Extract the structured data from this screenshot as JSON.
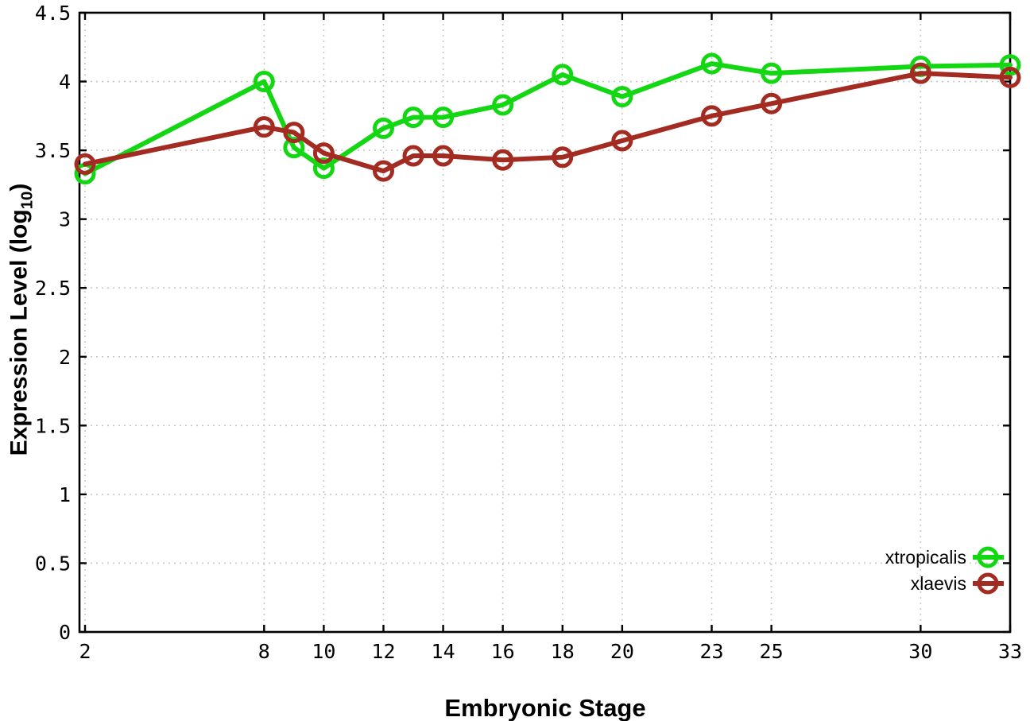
{
  "figure": {
    "xlabel": "Embryonic Stage",
    "ylabel_main": "Expression Level (log",
    "ylabel_sub": "10",
    "ylabel_close": ")"
  },
  "chart_data": {
    "type": "line",
    "title": "",
    "xlabel": "Embryonic Stage",
    "ylabel": "Expression Level (log10)",
    "xlim": [
      2,
      33
    ],
    "ylim": [
      0,
      4.5
    ],
    "grid": true,
    "legend_position": "inside-bottom-right",
    "marker": "open-circle",
    "x_ticks": [
      2,
      8,
      10,
      12,
      14,
      16,
      18,
      20,
      23,
      25,
      30,
      33
    ],
    "y_ticks": [
      0,
      0.5,
      1,
      1.5,
      2,
      2.5,
      3,
      3.5,
      4,
      4.5
    ],
    "x": [
      2,
      8,
      9,
      10,
      12,
      13,
      14,
      16,
      18,
      20,
      23,
      25,
      30,
      33
    ],
    "series": [
      {
        "name": "xtropicalis",
        "color": "#12d712",
        "values": [
          3.33,
          4.0,
          3.52,
          3.37,
          3.66,
          3.74,
          3.74,
          3.83,
          4.05,
          3.89,
          4.13,
          4.06,
          4.11,
          4.12
        ]
      },
      {
        "name": "xlaevis",
        "color": "#a32b22",
        "values": [
          3.4,
          3.67,
          3.63,
          3.48,
          3.35,
          3.46,
          3.46,
          3.43,
          3.45,
          3.57,
          3.75,
          3.84,
          4.06,
          4.03
        ]
      }
    ],
    "colors": {
      "grid": "#c8c8c8",
      "axis": "#000000",
      "text": "#000000"
    }
  }
}
